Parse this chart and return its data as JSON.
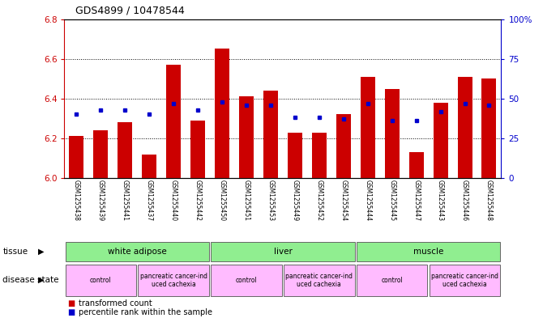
{
  "title": "GDS4899 / 10478544",
  "samples": [
    "GSM1255438",
    "GSM1255439",
    "GSM1255441",
    "GSM1255437",
    "GSM1255440",
    "GSM1255442",
    "GSM1255450",
    "GSM1255451",
    "GSM1255453",
    "GSM1255449",
    "GSM1255452",
    "GSM1255454",
    "GSM1255444",
    "GSM1255445",
    "GSM1255447",
    "GSM1255443",
    "GSM1255446",
    "GSM1255448"
  ],
  "transformed_count": [
    6.21,
    6.24,
    6.28,
    6.12,
    6.57,
    6.29,
    6.65,
    6.41,
    6.44,
    6.23,
    6.23,
    6.32,
    6.51,
    6.45,
    6.13,
    6.38,
    6.51,
    6.5
  ],
  "percentile_rank": [
    40,
    43,
    43,
    40,
    47,
    43,
    48,
    46,
    46,
    38,
    38,
    37,
    47,
    36,
    36,
    42,
    47,
    46
  ],
  "ylim_left": [
    6.0,
    6.8
  ],
  "ylim_right": [
    0,
    100
  ],
  "yticks_left": [
    6.0,
    6.2,
    6.4,
    6.6,
    6.8
  ],
  "yticks_right": [
    0,
    25,
    50,
    75,
    100
  ],
  "ytick_labels_right": [
    "0",
    "25",
    "50",
    "75",
    "100%"
  ],
  "bar_color": "#cc0000",
  "dot_color": "#0000cc",
  "tissue_groups": [
    {
      "label": "white adipose",
      "start": 0,
      "end": 6
    },
    {
      "label": "liver",
      "start": 6,
      "end": 12
    },
    {
      "label": "muscle",
      "start": 12,
      "end": 18
    }
  ],
  "disease_groups": [
    {
      "label": "control",
      "start": 0,
      "end": 3
    },
    {
      "label": "pancreatic cancer-ind\nuced cachexia",
      "start": 3,
      "end": 6
    },
    {
      "label": "control",
      "start": 6,
      "end": 9
    },
    {
      "label": "pancreatic cancer-ind\nuced cachexia",
      "start": 9,
      "end": 12
    },
    {
      "label": "control",
      "start": 12,
      "end": 15
    },
    {
      "label": "pancreatic cancer-ind\nuced cachexia",
      "start": 15,
      "end": 18
    }
  ],
  "tissue_color": "#90ee90",
  "disease_color": "#ffbbff",
  "background_color": "#ffffff",
  "left_axis_color": "#cc0000",
  "right_axis_color": "#0000cc",
  "sample_bg_color": "#d0d0d0",
  "legend_items": [
    {
      "label": "transformed count",
      "color": "#cc0000"
    },
    {
      "label": "percentile rank within the sample",
      "color": "#0000cc"
    }
  ]
}
